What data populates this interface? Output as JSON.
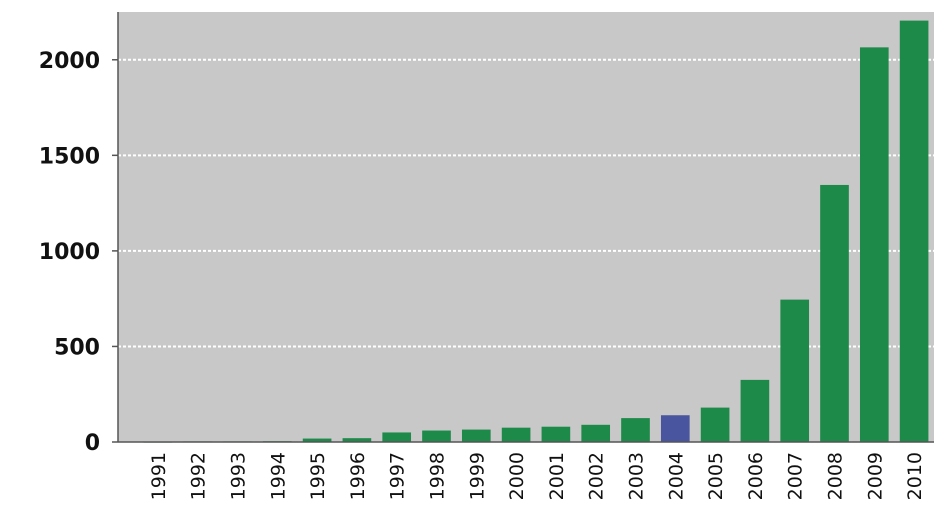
{
  "chart_data": {
    "type": "bar",
    "title": "",
    "xlabel": "",
    "ylabel": "",
    "categories": [
      "1991",
      "1992",
      "1993",
      "1994",
      "1995",
      "1996",
      "1997",
      "1998",
      "1999",
      "2000",
      "2001",
      "2002",
      "2003",
      "2004",
      "2005",
      "2006",
      "2007",
      "2008",
      "2009",
      "2010"
    ],
    "values": [
      2,
      3,
      3,
      4,
      18,
      20,
      50,
      60,
      65,
      75,
      80,
      90,
      125,
      140,
      180,
      325,
      745,
      1345,
      2065,
      2205
    ],
    "highlight_category": "2004",
    "ylim": [
      0,
      2250
    ],
    "yticks": [
      0,
      500,
      1000,
      1500,
      2000
    ],
    "grid": true,
    "legend": "none",
    "colors": {
      "bar": "#1e8a4a",
      "highlight_bar": "#4a55a0",
      "plot_background": "#c8c8c8",
      "gridline": "#ffffff"
    }
  }
}
